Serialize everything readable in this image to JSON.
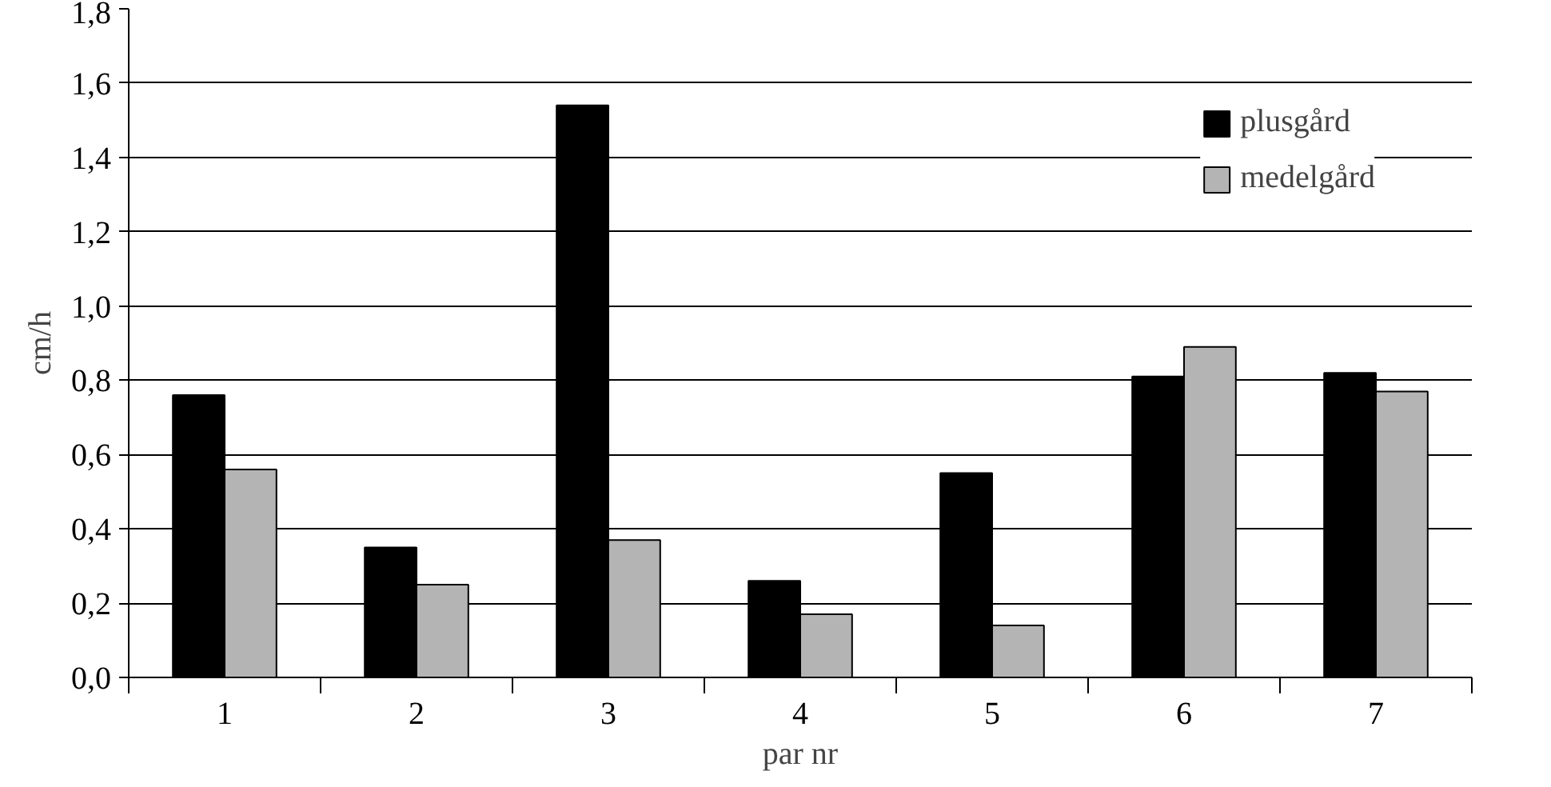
{
  "chart_data": {
    "type": "bar",
    "xlabel": "par nr",
    "ylabel": "cm/h",
    "categories": [
      "1",
      "2",
      "3",
      "4",
      "5",
      "6",
      "7"
    ],
    "series": [
      {
        "name": "plusgård",
        "color": "#000000",
        "values": [
          0.76,
          0.35,
          1.54,
          0.26,
          0.55,
          0.81,
          0.82
        ]
      },
      {
        "name": "medelgård",
        "color": "#b4b4b4",
        "values": [
          0.56,
          0.25,
          0.37,
          0.17,
          0.14,
          0.89,
          0.77
        ]
      }
    ],
    "ylim": [
      0,
      1.8
    ],
    "yticks": [
      {
        "value": 0,
        "label": "0,0"
      },
      {
        "value": 0.2,
        "label": "0,2"
      },
      {
        "value": 0.4,
        "label": "0,4"
      },
      {
        "value": 0.6,
        "label": "0,6"
      },
      {
        "value": 0.8,
        "label": "0,8"
      },
      {
        "value": 1.0,
        "label": "1,0"
      },
      {
        "value": 1.2,
        "label": "1,2"
      },
      {
        "value": 1.4,
        "label": "1,4"
      },
      {
        "value": 1.6,
        "label": "1,6"
      },
      {
        "value": 1.8,
        "label": "1,8"
      }
    ],
    "grid": "y",
    "legend": "top right"
  }
}
